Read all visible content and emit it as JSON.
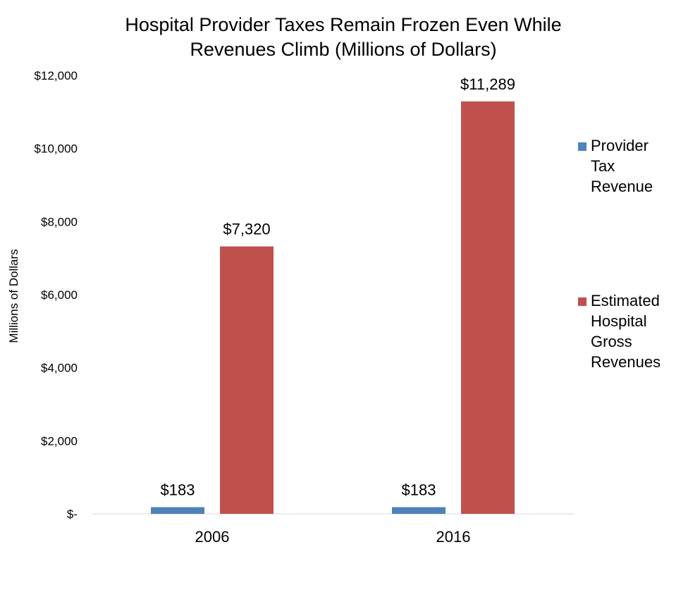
{
  "chart_data": {
    "type": "bar",
    "title_lines": [
      "Hospital Provider Taxes Remain Frozen Even While",
      "Revenues Climb (Millions of Dollars)"
    ],
    "ylabel": "Millions of Dollars",
    "xlabel": "",
    "categories": [
      "2006",
      "2016"
    ],
    "ylim": [
      0,
      12000
    ],
    "yticks": [
      0,
      2000,
      4000,
      6000,
      8000,
      10000,
      12000
    ],
    "ytick_labels": [
      "$-",
      "$2,000",
      "$4,000",
      "$6,000",
      "$8,000",
      "$10,000",
      "$12,000"
    ],
    "grid": false,
    "legend_position": "right",
    "series": [
      {
        "name_lines": [
          "Provider",
          "Tax",
          "Revenue"
        ],
        "color": "#4f81bd",
        "values": [
          183,
          183
        ],
        "labels": [
          "$183",
          "$183"
        ]
      },
      {
        "name_lines": [
          "Estimated",
          "Hospital",
          "Gross",
          "Revenues"
        ],
        "color": "#c0504d",
        "values": [
          7320,
          11289
        ],
        "labels": [
          "$7,320",
          "$11,289"
        ]
      }
    ]
  }
}
